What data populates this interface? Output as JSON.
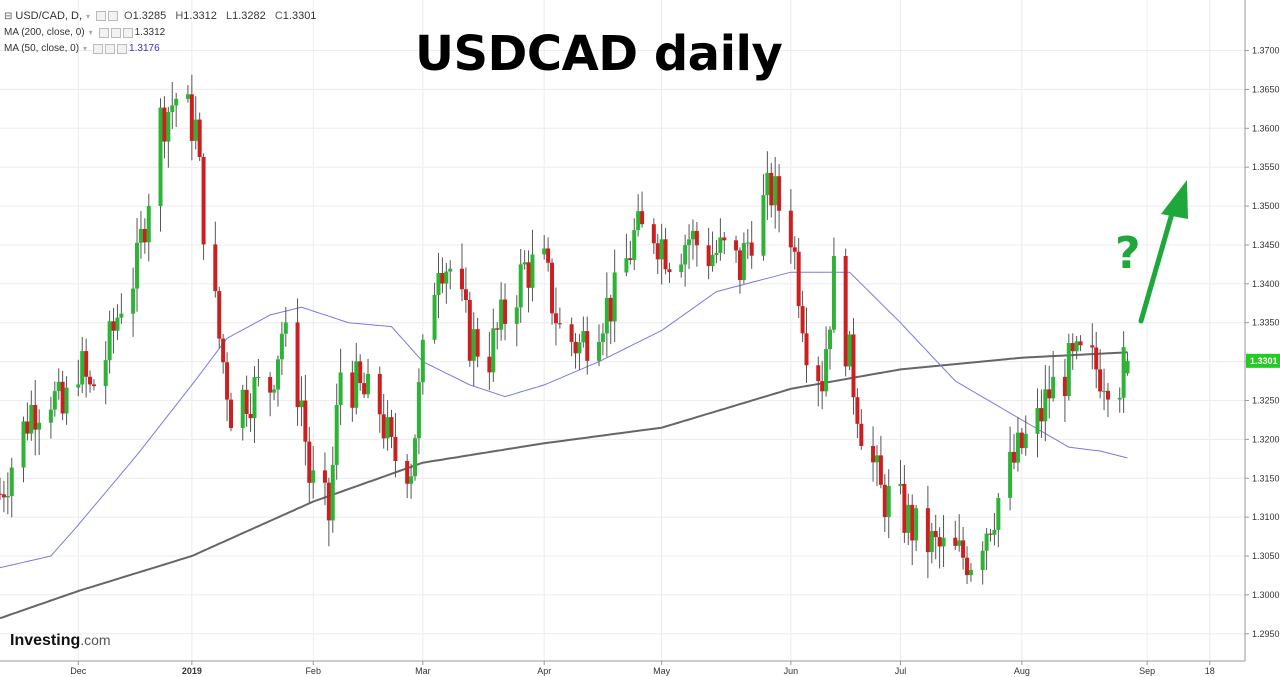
{
  "header": {
    "symbol": "USD/CAD, D,",
    "open_label": "O",
    "open": "1.3285",
    "high_label": "H",
    "high": "1.3312",
    "low_label": "L",
    "low": "1.3282",
    "close_label": "C",
    "close": "1.3301",
    "ma200_label": "MA (200, close, 0)",
    "ma200_value": "1.3312",
    "ma50_label": "MA (50, close, 0)",
    "ma50_value": "1.3176"
  },
  "headline": "USDCAD daily",
  "logo": {
    "name": "Investing",
    "suffix": ".com"
  },
  "annotation": {
    "text": "?"
  },
  "price_tag": "1.3301",
  "colors": {
    "up": "#2db336",
    "down": "#cc1f1f",
    "ma200": "#666666",
    "ma50": "#7878e8",
    "arrow": "#1fa83a",
    "tag": "#22cc22"
  },
  "chart_data": {
    "type": "candlestick",
    "y_ticks": [
      "1.2950",
      "1.3000",
      "1.3050",
      "1.3100",
      "1.3150",
      "1.3200",
      "1.3250",
      "1.3300",
      "1.3350",
      "1.3400",
      "1.3450",
      "1.3500",
      "1.3550",
      "1.3600",
      "1.3650",
      "1.3700"
    ],
    "x_ticks": [
      "Dec",
      "2019",
      "Feb",
      "Mar",
      "Apr",
      "May",
      "Jun",
      "Jul",
      "Aug",
      "Sep",
      "18"
    ],
    "x_tick_dates": [
      "2018-12-03",
      "2019-01-01",
      "2019-02-01",
      "2019-03-01",
      "2019-04-01",
      "2019-05-01",
      "2019-06-03",
      "2019-07-01",
      "2019-08-01",
      "2019-09-02",
      "2019-09-18"
    ],
    "ylim": [
      1.2915,
      1.3765
    ],
    "xlim": [
      "2018-11-13",
      "2019-09-27"
    ],
    "close_anchors": [
      [
        "2018-11-13",
        1.313
      ],
      [
        "2018-11-16",
        1.317
      ],
      [
        "2018-11-21",
        1.324
      ],
      [
        "2018-11-26",
        1.326
      ],
      [
        "2018-11-29",
        1.323
      ],
      [
        "2018-12-03",
        1.33
      ],
      [
        "2018-12-06",
        1.326
      ],
      [
        "2018-12-11",
        1.332
      ],
      [
        "2018-12-14",
        1.338
      ],
      [
        "2018-12-18",
        1.342
      ],
      [
        "2018-12-21",
        1.352
      ],
      [
        "2018-12-24",
        1.361
      ],
      [
        "2018-12-28",
        1.364
      ],
      [
        "2019-01-02",
        1.36
      ],
      [
        "2019-01-04",
        1.348
      ],
      [
        "2019-01-08",
        1.333
      ],
      [
        "2019-01-11",
        1.324
      ],
      [
        "2019-01-15",
        1.326
      ],
      [
        "2019-01-21",
        1.327
      ],
      [
        "2019-01-24",
        1.334
      ],
      [
        "2019-01-29",
        1.325
      ],
      [
        "2019-01-31",
        1.315
      ],
      [
        "2019-02-05",
        1.31
      ],
      [
        "2019-02-08",
        1.329
      ],
      [
        "2019-02-13",
        1.326
      ],
      [
        "2019-02-18",
        1.324
      ],
      [
        "2019-02-21",
        1.318
      ],
      [
        "2019-02-26",
        1.317
      ],
      [
        "2019-03-01",
        1.33
      ],
      [
        "2019-03-05",
        1.344
      ],
      [
        "2019-03-08",
        1.342
      ],
      [
        "2019-03-13",
        1.333
      ],
      [
        "2019-03-18",
        1.331
      ],
      [
        "2019-03-22",
        1.336
      ],
      [
        "2019-03-27",
        1.342
      ],
      [
        "2019-04-01",
        1.342
      ],
      [
        "2019-04-05",
        1.334
      ],
      [
        "2019-04-10",
        1.332
      ],
      [
        "2019-04-15",
        1.336
      ],
      [
        "2019-04-19",
        1.338
      ],
      [
        "2019-04-24",
        1.346
      ],
      [
        "2019-04-29",
        1.347
      ],
      [
        "2019-05-03",
        1.344
      ],
      [
        "2019-05-08",
        1.346
      ],
      [
        "2019-05-13",
        1.344
      ],
      [
        "2019-05-17",
        1.344
      ],
      [
        "2019-05-21",
        1.342
      ],
      [
        "2019-05-24",
        1.347
      ],
      [
        "2019-05-29",
        1.352
      ],
      [
        "2019-06-03",
        1.347
      ],
      [
        "2019-06-07",
        1.333
      ],
      [
        "2019-06-11",
        1.328
      ],
      [
        "2019-06-14",
        1.341
      ],
      [
        "2019-06-18",
        1.33
      ],
      [
        "2019-06-21",
        1.322
      ],
      [
        "2019-06-26",
        1.313
      ],
      [
        "2019-07-01",
        1.311
      ],
      [
        "2019-07-05",
        1.308
      ],
      [
        "2019-07-10",
        1.306
      ],
      [
        "2019-07-15",
        1.305
      ],
      [
        "2019-07-19",
        1.305
      ],
      [
        "2019-07-24",
        1.31
      ],
      [
        "2019-07-29",
        1.316
      ],
      [
        "2019-08-01",
        1.319
      ],
      [
        "2019-08-05",
        1.322
      ],
      [
        "2019-08-08",
        1.326
      ],
      [
        "2019-08-13",
        1.329
      ],
      [
        "2019-08-16",
        1.33
      ],
      [
        "2019-08-21",
        1.329
      ],
      [
        "2019-08-26",
        1.328
      ],
      [
        "2019-08-28",
        1.3301
      ]
    ],
    "ma200_anchors": [
      [
        "2018-11-13",
        1.297
      ],
      [
        "2018-12-03",
        1.3005
      ],
      [
        "2019-01-01",
        1.305
      ],
      [
        "2019-02-01",
        1.312
      ],
      [
        "2019-03-01",
        1.317
      ],
      [
        "2019-04-01",
        1.3195
      ],
      [
        "2019-05-01",
        1.3215
      ],
      [
        "2019-06-03",
        1.3265
      ],
      [
        "2019-07-01",
        1.329
      ],
      [
        "2019-08-01",
        1.3305
      ],
      [
        "2019-08-28",
        1.3312
      ]
    ],
    "ma50_anchors": [
      [
        "2018-11-13",
        1.3035
      ],
      [
        "2018-11-26",
        1.305
      ],
      [
        "2018-12-03",
        1.309
      ],
      [
        "2018-12-18",
        1.318
      ],
      [
        "2019-01-01",
        1.327
      ],
      [
        "2019-01-10",
        1.333
      ],
      [
        "2019-01-21",
        1.336
      ],
      [
        "2019-01-29",
        1.337
      ],
      [
        "2019-02-10",
        1.335
      ],
      [
        "2019-02-21",
        1.3345
      ],
      [
        "2019-03-01",
        1.33
      ],
      [
        "2019-03-13",
        1.327
      ],
      [
        "2019-03-22",
        1.3255
      ],
      [
        "2019-04-01",
        1.327
      ],
      [
        "2019-04-15",
        1.33
      ],
      [
        "2019-05-01",
        1.334
      ],
      [
        "2019-05-15",
        1.339
      ],
      [
        "2019-06-03",
        1.3415
      ],
      [
        "2019-06-18",
        1.3415
      ],
      [
        "2019-07-01",
        1.335
      ],
      [
        "2019-07-15",
        1.3275
      ],
      [
        "2019-08-01",
        1.3225
      ],
      [
        "2019-08-13",
        1.319
      ],
      [
        "2019-08-21",
        1.3185
      ],
      [
        "2019-08-28",
        1.3176
      ]
    ]
  }
}
